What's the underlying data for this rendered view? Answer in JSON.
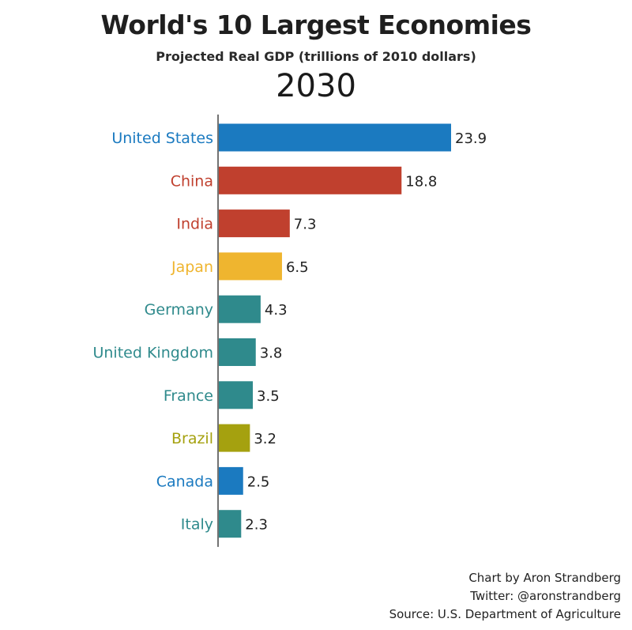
{
  "chart_data": {
    "type": "bar",
    "title": "World's 10 Largest Economies",
    "subtitle": "Projected Real GDP (trillions of 2010 dollars)",
    "year": "2030",
    "orientation": "horizontal",
    "categories": [
      "United States",
      "China",
      "India",
      "Japan",
      "Germany",
      "United Kingdom",
      "France",
      "Brazil",
      "Canada",
      "Italy"
    ],
    "values": [
      23.9,
      18.8,
      7.3,
      6.5,
      4.3,
      3.8,
      3.5,
      3.2,
      2.5,
      2.3
    ],
    "value_labels": [
      "23.9",
      "18.8",
      "7.3",
      "6.5",
      "4.3",
      "3.8",
      "3.5",
      "3.2",
      "2.5",
      "2.3"
    ],
    "colors": [
      "#1b7ac0",
      "#c0402e",
      "#c0402e",
      "#efb52f",
      "#2f8a8c",
      "#2f8a8c",
      "#2f8a8c",
      "#a5a10f",
      "#1b7ac0",
      "#2f8a8c"
    ],
    "xlim": [
      0,
      23.9
    ],
    "grid": false,
    "legend": "none"
  },
  "credits": {
    "author": "Chart by Aron Strandberg",
    "twitter": "Twitter: @aronstrandberg",
    "source": "Source: U.S. Department of Agriculture"
  }
}
